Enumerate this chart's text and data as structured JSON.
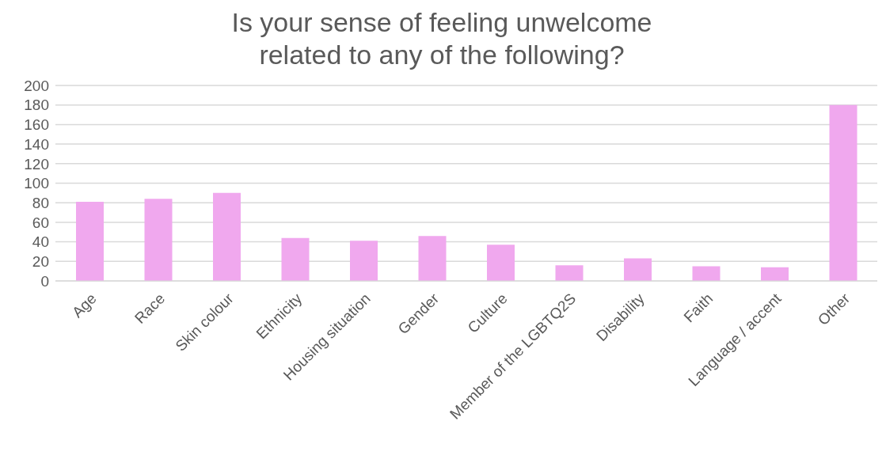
{
  "chart_data": {
    "type": "bar",
    "title": "Is your sense of feeling unwelcome\nrelated to any of the following?",
    "categories": [
      "Age",
      "Race",
      "Skin colour",
      "Ethnicity",
      "Housing situation",
      "Gender",
      "Culture",
      "Member of the LGBTQ2S",
      "Disability",
      "Faith",
      "Language / accent",
      "Other"
    ],
    "values": [
      81,
      84,
      90,
      44,
      41,
      46,
      37,
      16,
      23,
      15,
      14,
      180
    ],
    "color": "#f0a8ee",
    "ylim": [
      0,
      200
    ],
    "yticks": [
      0,
      20,
      40,
      60,
      80,
      100,
      120,
      140,
      160,
      180,
      200
    ],
    "grid": "y"
  }
}
